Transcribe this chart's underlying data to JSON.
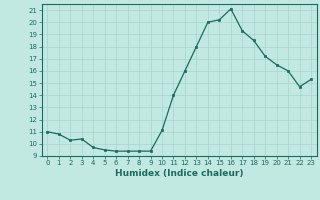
{
  "x": [
    0,
    1,
    2,
    3,
    4,
    5,
    6,
    7,
    8,
    9,
    10,
    11,
    12,
    13,
    14,
    15,
    16,
    17,
    18,
    19,
    20,
    21,
    22,
    23
  ],
  "y": [
    11.0,
    10.8,
    10.3,
    10.4,
    9.7,
    9.5,
    9.4,
    9.4,
    9.4,
    9.4,
    11.1,
    14.0,
    16.0,
    18.0,
    20.0,
    20.2,
    21.1,
    19.3,
    18.5,
    17.2,
    16.5,
    16.0,
    14.7,
    15.3
  ],
  "xlabel": "Humidex (Indice chaleur)",
  "ylim": [
    9,
    21.5
  ],
  "xlim": [
    -0.5,
    23.5
  ],
  "yticks": [
    9,
    10,
    11,
    12,
    13,
    14,
    15,
    16,
    17,
    18,
    19,
    20,
    21
  ],
  "xticks": [
    0,
    1,
    2,
    3,
    4,
    5,
    6,
    7,
    8,
    9,
    10,
    11,
    12,
    13,
    14,
    15,
    16,
    17,
    18,
    19,
    20,
    21,
    22,
    23
  ],
  "line_color": "#1a6b5e",
  "marker_color": "#1a6b5e",
  "bg_color": "#c2e8e2",
  "grid_color": "#a8d4ce",
  "xlabel_color": "#1a6b5e",
  "tick_color": "#1a6b5e",
  "tick_fontsize": 5.0,
  "xlabel_fontsize": 6.5,
  "linewidth": 0.9,
  "markersize": 2.0
}
